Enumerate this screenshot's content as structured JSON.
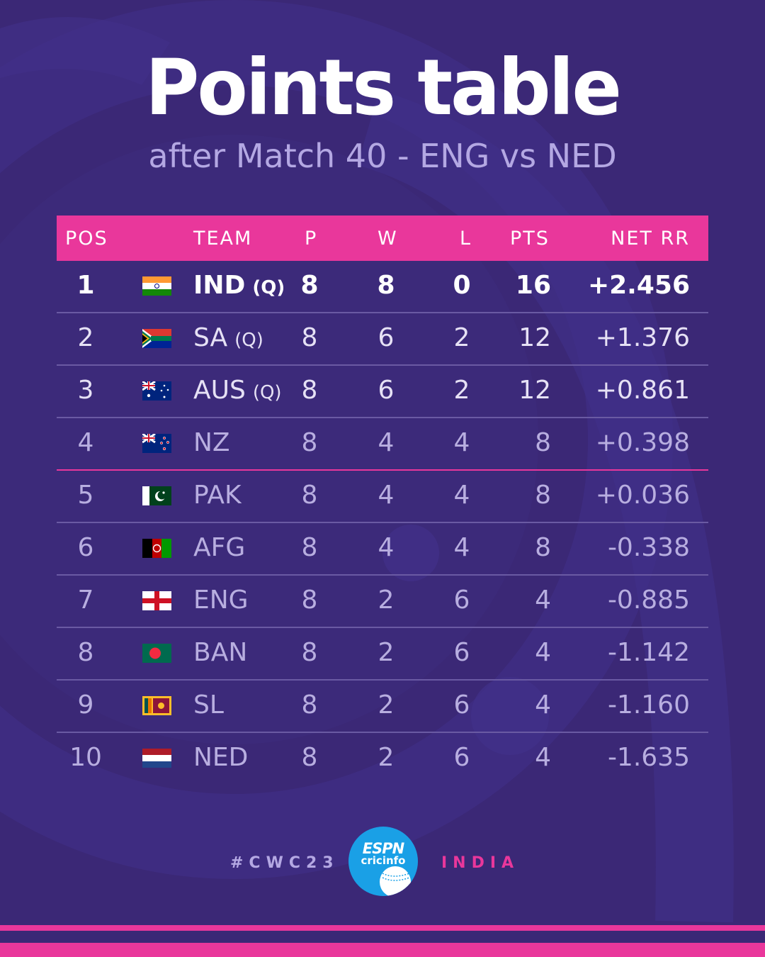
{
  "title": "Points table",
  "subtitle": "after Match 40 - ENG vs NED",
  "colors": {
    "background": "#3b2876",
    "accent": "#e9379b",
    "text": "#b8aee0"
  },
  "headers": {
    "pos": "POS",
    "team": "TEAM",
    "p": "P",
    "w": "W",
    "l": "L",
    "pts": "PTS",
    "nrr": "NET RR"
  },
  "rows": [
    {
      "pos": "1",
      "team": "IND",
      "q": "(Q)",
      "p": "8",
      "w": "8",
      "l": "0",
      "pts": "16",
      "nrr": "+2.456",
      "flag": "india-flag"
    },
    {
      "pos": "2",
      "team": "SA",
      "q": "(Q)",
      "p": "8",
      "w": "6",
      "l": "2",
      "pts": "12",
      "nrr": "+1.376",
      "flag": "south-africa-flag"
    },
    {
      "pos": "3",
      "team": "AUS",
      "q": "(Q)",
      "p": "8",
      "w": "6",
      "l": "2",
      "pts": "12",
      "nrr": "+0.861",
      "flag": "australia-flag"
    },
    {
      "pos": "4",
      "team": "NZ",
      "q": "",
      "p": "8",
      "w": "4",
      "l": "4",
      "pts": "8",
      "nrr": "+0.398",
      "flag": "new-zealand-flag"
    },
    {
      "pos": "5",
      "team": "PAK",
      "q": "",
      "p": "8",
      "w": "4",
      "l": "4",
      "pts": "8",
      "nrr": "+0.036",
      "flag": "pakistan-flag"
    },
    {
      "pos": "6",
      "team": "AFG",
      "q": "",
      "p": "8",
      "w": "4",
      "l": "4",
      "pts": "8",
      "nrr": "-0.338",
      "flag": "afghanistan-flag"
    },
    {
      "pos": "7",
      "team": "ENG",
      "q": "",
      "p": "8",
      "w": "2",
      "l": "6",
      "pts": "4",
      "nrr": "-0.885",
      "flag": "england-flag"
    },
    {
      "pos": "8",
      "team": "BAN",
      "q": "",
      "p": "8",
      "w": "2",
      "l": "6",
      "pts": "4",
      "nrr": "-1.142",
      "flag": "bangladesh-flag"
    },
    {
      "pos": "9",
      "team": "SL",
      "q": "",
      "p": "8",
      "w": "2",
      "l": "6",
      "pts": "4",
      "nrr": "-1.160",
      "flag": "sri-lanka-flag"
    },
    {
      "pos": "10",
      "team": "NED",
      "q": "",
      "p": "8",
      "w": "2",
      "l": "6",
      "pts": "4",
      "nrr": "-1.635",
      "flag": "netherlands-flag"
    }
  ],
  "footer": {
    "hashtag": "#CWC23",
    "logo_top": "ESPN",
    "logo_bottom": "cricinfo",
    "region": "INDIA"
  }
}
